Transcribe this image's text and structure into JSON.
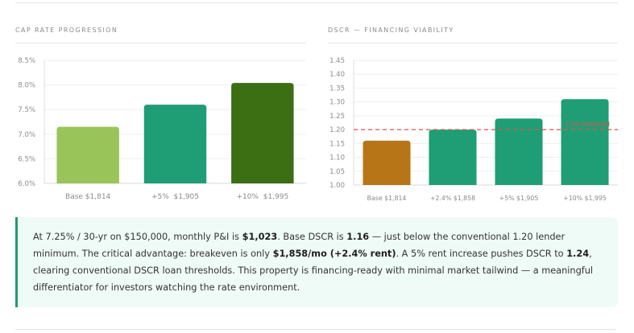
{
  "cap_rate_panel": {
    "title": "CAP RATE PROGRESSION"
  },
  "dscr_panel": {
    "title": "DSCR — FINANCING VIABILITY"
  },
  "chart_data": [
    {
      "type": "bar",
      "title": "CAP RATE PROGRESSION",
      "xlabel": "",
      "ylabel": "",
      "categories": [
        "Base $1,814",
        "+5%  $1,905",
        "+10%  $1,995"
      ],
      "values": [
        7.15,
        7.6,
        8.04
      ],
      "unit": "%",
      "ylim": [
        6.0,
        8.5
      ],
      "yticks": [
        6.0,
        6.5,
        7.0,
        7.5,
        8.0,
        8.5
      ],
      "ytick_labels": [
        "6.0%",
        "6.5%",
        "7.0%",
        "7.5%",
        "8.0%",
        "8.5%"
      ],
      "bar_colors": [
        "#99c45a",
        "#1f9e76",
        "#3c6e14"
      ],
      "grid": true,
      "legend": "none"
    },
    {
      "type": "bar",
      "title": "DSCR — FINANCING VIABILITY",
      "xlabel": "",
      "ylabel": "",
      "categories": [
        "Base $1,814",
        "+2.4% $1,858",
        "+5% $1,905",
        "+10% $1,995"
      ],
      "values": [
        1.16,
        1.2,
        1.24,
        1.31
      ],
      "ylim": [
        1.0,
        1.45
      ],
      "yticks": [
        1.0,
        1.05,
        1.1,
        1.15,
        1.2,
        1.25,
        1.3,
        1.35,
        1.4,
        1.45
      ],
      "ytick_labels": [
        "1.00",
        "1.05",
        "1.10",
        "1.15",
        "1.20",
        "1.25",
        "1.30",
        "1.35",
        "1.40",
        "1.45"
      ],
      "bar_colors": [
        "#b87518",
        "#1f9e76",
        "#1f9e76",
        "#1f9e76"
      ],
      "threshold": {
        "value": 1.2,
        "label": "1.20 threshold",
        "color": "#e0534a"
      },
      "grid": true,
      "legend": "none"
    }
  ],
  "callout": {
    "segments": [
      {
        "text": "At 7.25% / 30-yr on $150,000, monthly P&I is ",
        "bold": false
      },
      {
        "text": "$1,023",
        "bold": true
      },
      {
        "text": ". Base DSCR is ",
        "bold": false
      },
      {
        "text": "1.16",
        "bold": true
      },
      {
        "text": " — just below the conventional 1.20 lender minimum. The critical advantage: breakeven is only ",
        "bold": false
      },
      {
        "text": "$1,858/mo (+2.4% rent)",
        "bold": true
      },
      {
        "text": ". A 5% rent increase pushes DSCR to ",
        "bold": false
      },
      {
        "text": "1.24",
        "bold": true
      },
      {
        "text": ", clearing conventional DSCR loan thresholds. This property is financing-ready with minimal market tailwind — a meaningful differentiator for investors watching the rate environment.",
        "bold": false
      }
    ],
    "accent_color": "#1f9a72"
  }
}
